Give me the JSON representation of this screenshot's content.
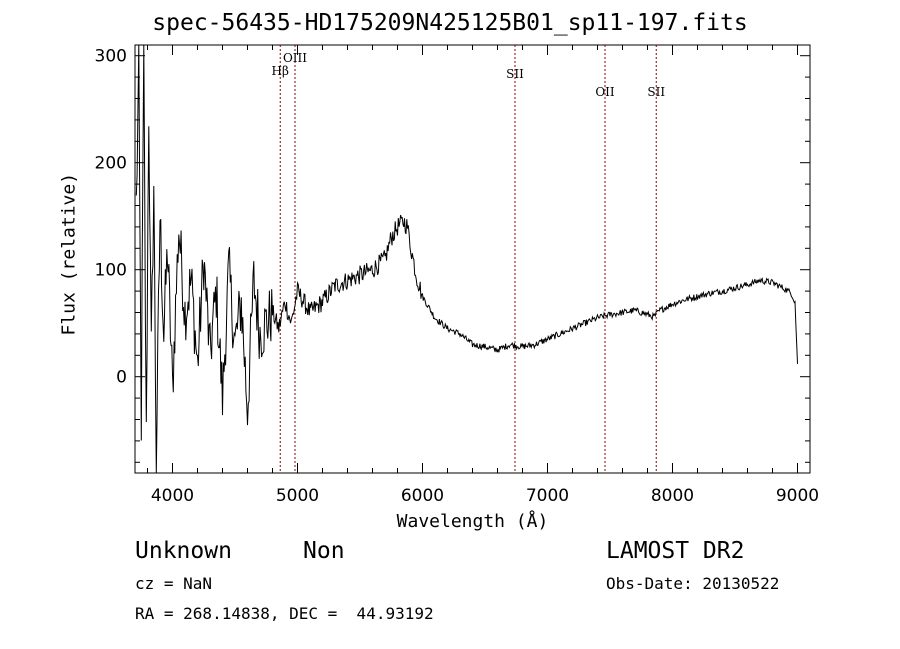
{
  "title": "spec-56435-HD175209N425125B01_sp11-197.fits",
  "info": {
    "class": "Unknown",
    "subclass": "Non",
    "survey": "LAMOST DR2",
    "cz": "cz = NaN",
    "obs_date": "Obs-Date: 20130522",
    "coords": "RA = 268.14838, DEC =  44.93192"
  },
  "chart_data": {
    "type": "line",
    "title": "spec-56435-HD175209N425125B01_sp11-197.fits",
    "xlabel": "Wavelength (Å)",
    "ylabel": "Flux (relative)",
    "xlim": [
      3700,
      9100
    ],
    "ylim": [
      -90,
      310
    ],
    "xticks": [
      4000,
      5000,
      6000,
      7000,
      8000,
      9000
    ],
    "yticks": [
      0,
      100,
      200,
      300
    ],
    "grid": false,
    "line_color": "#000000",
    "marker_color": "#8b0000",
    "lines": [
      {
        "label": "Hβ",
        "wavelength": 4862
      },
      {
        "label": "OIII",
        "wavelength": 4980
      },
      {
        "label": "SII",
        "wavelength": 6740
      },
      {
        "label": "OII",
        "wavelength": 7460
      },
      {
        "label": "SII",
        "wavelength": 7870
      }
    ],
    "series": [
      {
        "x": [
          3710,
          3730,
          3750,
          3770,
          3790,
          3810,
          3830,
          3850,
          3870,
          3900,
          3930,
          3960,
          4000,
          4050,
          4100,
          4150,
          4200,
          4250,
          4300,
          4350,
          4400,
          4450,
          4500,
          4550,
          4600,
          4650,
          4700,
          4750,
          4800,
          4850,
          4900,
          4950,
          5000,
          5100,
          5200,
          5300,
          5400,
          5500,
          5600,
          5700,
          5750,
          5800,
          5850,
          5880,
          5900,
          5950,
          6000,
          6100,
          6200,
          6300,
          6400,
          6500,
          6600,
          6700,
          6800,
          6900,
          7000,
          7100,
          7200,
          7300,
          7400,
          7500,
          7600,
          7700,
          7800,
          7850,
          7900,
          8000,
          8100,
          8200,
          8300,
          8400,
          8500,
          8600,
          8700,
          8800,
          8850,
          8900,
          8950,
          8980,
          9000
        ],
        "y": [
          160,
          280,
          -40,
          300,
          -60,
          250,
          20,
          180,
          -80,
          150,
          40,
          120,
          -10,
          140,
          60,
          90,
          10,
          110,
          20,
          80,
          -20,
          100,
          30,
          70,
          -30,
          90,
          40,
          50,
          60,
          45,
          70,
          50,
          80,
          60,
          70,
          85,
          90,
          95,
          100,
          110,
          130,
          140,
          145,
          140,
          125,
          95,
          75,
          55,
          45,
          40,
          30,
          28,
          25,
          30,
          28,
          30,
          35,
          40,
          45,
          50,
          55,
          58,
          60,
          62,
          58,
          56,
          62,
          68,
          72,
          75,
          78,
          80,
          83,
          86,
          90,
          88,
          85,
          82,
          78,
          70,
          12
        ]
      }
    ]
  }
}
